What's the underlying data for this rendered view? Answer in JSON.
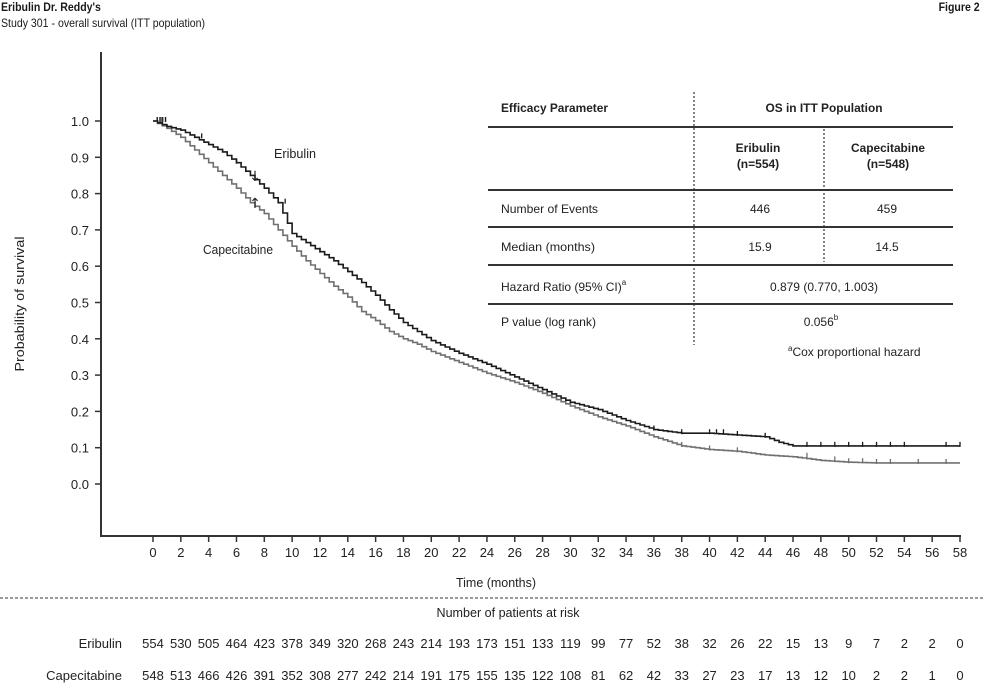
{
  "header": {
    "title": "Eribulin Dr. Reddy's",
    "subtitle": "Study 301 - overall survival (ITT population)",
    "figure_label": "Figure 2"
  },
  "annotations": {
    "eribulin_label": "Eribulin",
    "capecitabine_label": "Capecitabine",
    "eribulin_arrow": "↓",
    "capecitabine_arrow": "↑"
  },
  "table": {
    "col_param": "Efficacy Parameter",
    "col_group": "OS in ITT Population",
    "arm1_name": "Eribulin",
    "arm1_n": "(n=554)",
    "arm2_name": "Capecitabine",
    "arm2_n": "(n=548)",
    "rows": [
      {
        "label": "Number of Events",
        "arm1": "446",
        "arm2": "459"
      },
      {
        "label": "Median (months)",
        "arm1": "15.9",
        "arm2": "14.5"
      }
    ],
    "hr_label": "Hazard Ratio (95% CI)",
    "hr_sup": "a",
    "hr_value": "0.879 (0.770, 1.003)",
    "p_label": "P value (log rank)",
    "p_value": "0.056",
    "p_sup": "b",
    "footnote_sup": "a",
    "footnote": "Cox proportional hazard"
  },
  "risk_table": {
    "title": "Number of patients at risk",
    "rows": [
      {
        "label": "Eribulin",
        "values": [
          "554",
          "530",
          "505",
          "464",
          "423",
          "378",
          "349",
          "320",
          "268",
          "243",
          "214",
          "193",
          "173",
          "151",
          "133",
          "119",
          "99",
          "77",
          "52",
          "38",
          "32",
          "26",
          "22",
          "15",
          "13",
          "9",
          "7",
          "2",
          "2",
          "0"
        ]
      },
      {
        "label": "Capecitabine",
        "values": [
          "548",
          "513",
          "466",
          "426",
          "391",
          "352",
          "308",
          "277",
          "242",
          "214",
          "191",
          "175",
          "155",
          "135",
          "122",
          "108",
          "81",
          "62",
          "42",
          "33",
          "27",
          "23",
          "17",
          "13",
          "12",
          "10",
          "2",
          "2",
          "1",
          "0"
        ]
      }
    ]
  },
  "chart_data": {
    "type": "line",
    "subtype": "kaplan-meier step",
    "title": "Study 301 - overall survival (ITT population)",
    "xlabel": "Time (months)",
    "ylabel": "Probability of survival",
    "xlim": [
      0,
      58
    ],
    "ylim": [
      0.0,
      1.0
    ],
    "x_ticks": [
      "0",
      "2",
      "4",
      "6",
      "8",
      "10",
      "12",
      "14",
      "16",
      "18",
      "20",
      "22",
      "24",
      "26",
      "28",
      "30",
      "32",
      "34",
      "36",
      "38",
      "40",
      "42",
      "44",
      "46",
      "48",
      "50",
      "52",
      "54",
      "56",
      "58"
    ],
    "y_ticks": [
      "0.0",
      "0.1",
      "0.2",
      "0.3",
      "0.4",
      "0.5",
      "0.6",
      "0.7",
      "0.8",
      "0.9",
      "1.0"
    ],
    "grid": false,
    "series": [
      {
        "name": "Eribulin",
        "color": "#1a1a1a",
        "x": [
          0,
          1,
          2,
          3,
          4,
          5,
          6,
          7,
          8,
          9,
          10,
          11,
          12,
          13,
          14,
          15,
          16,
          17,
          18,
          19,
          20,
          22,
          24,
          26,
          28,
          30,
          32,
          34,
          36,
          38,
          40,
          42,
          44,
          45,
          46,
          48,
          50,
          52,
          54,
          56,
          58
        ],
        "y": [
          1.0,
          0.985,
          0.975,
          0.955,
          0.935,
          0.915,
          0.885,
          0.85,
          0.815,
          0.775,
          0.69,
          0.665,
          0.64,
          0.615,
          0.585,
          0.555,
          0.52,
          0.48,
          0.445,
          0.42,
          0.395,
          0.36,
          0.33,
          0.295,
          0.26,
          0.225,
          0.205,
          0.175,
          0.15,
          0.14,
          0.14,
          0.135,
          0.13,
          0.115,
          0.105,
          0.105,
          0.105,
          0.105,
          0.105,
          0.105,
          0.105
        ]
      },
      {
        "name": "Capecitabine",
        "color": "#707070",
        "x": [
          0,
          1,
          2,
          3,
          4,
          5,
          6,
          7,
          8,
          9,
          10,
          11,
          12,
          13,
          14,
          15,
          16,
          17,
          18,
          19,
          20,
          22,
          24,
          26,
          28,
          30,
          32,
          34,
          36,
          38,
          40,
          42,
          44,
          46,
          48,
          50,
          52,
          54,
          56,
          58
        ],
        "y": [
          1.0,
          0.98,
          0.955,
          0.92,
          0.885,
          0.85,
          0.815,
          0.775,
          0.745,
          0.7,
          0.655,
          0.615,
          0.58,
          0.545,
          0.515,
          0.475,
          0.45,
          0.42,
          0.4,
          0.385,
          0.365,
          0.335,
          0.305,
          0.28,
          0.25,
          0.215,
          0.185,
          0.16,
          0.13,
          0.105,
          0.095,
          0.09,
          0.08,
          0.075,
          0.065,
          0.06,
          0.058,
          0.058,
          0.058,
          0.058
        ]
      }
    ],
    "legend": "inline annotations with arrows"
  }
}
